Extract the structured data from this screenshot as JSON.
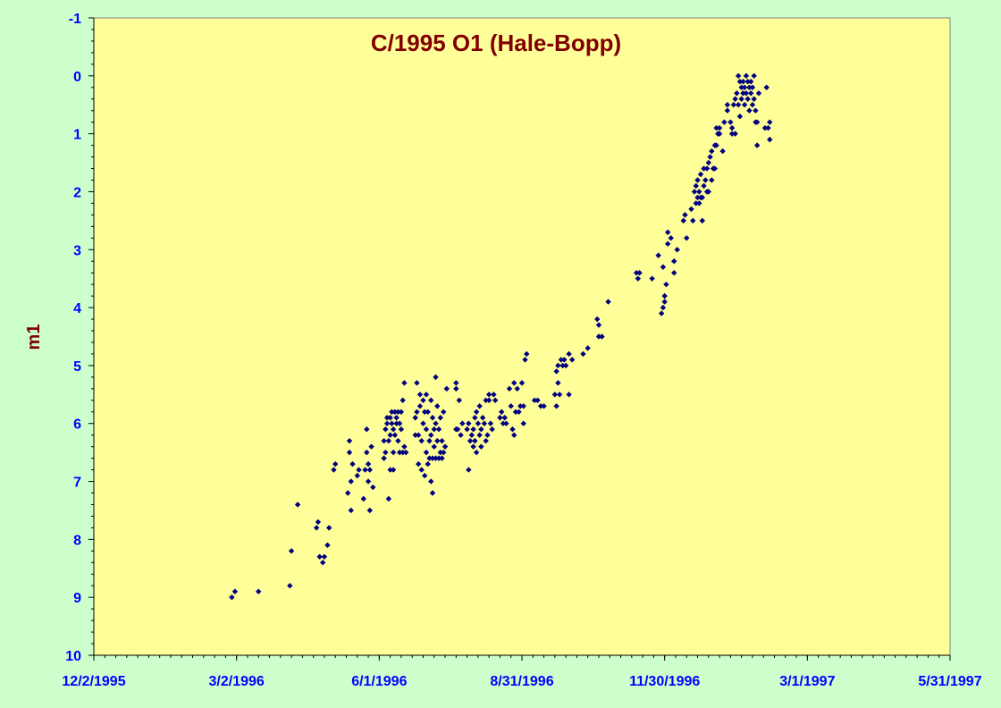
{
  "chart_data": {
    "type": "scatter",
    "title": "C/1995 O1 (Hale-Bopp)",
    "xlabel": "",
    "ylabel": "m1",
    "x_axis": {
      "kind": "date",
      "range": [
        "1995-12-02",
        "1997-05-31"
      ],
      "tick_labels": [
        "12/2/1995",
        "3/2/1996",
        "6/1/1996",
        "8/31/1996",
        "11/30/1996",
        "3/1/1997",
        "5/31/1997"
      ],
      "tick_dates": [
        "1995-12-02",
        "1996-03-02",
        "1996-06-01",
        "1996-08-31",
        "1996-11-30",
        "1997-03-01",
        "1997-05-31"
      ]
    },
    "y_axis": {
      "range": [
        -1,
        10
      ],
      "reversed": true,
      "tick_labels": [
        "-1",
        "0",
        "1",
        "2",
        "3",
        "4",
        "5",
        "6",
        "7",
        "8",
        "9",
        "10"
      ]
    },
    "grid": false,
    "legend": "none",
    "colors": {
      "background": "#ccffcc",
      "plot_area": "#ffff99",
      "marker": "#000080",
      "title": "#800000",
      "ticks": "#0000ff"
    },
    "series": [
      {
        "marker": "diamond",
        "points": [
          [
            "1996-02-28",
            9.0
          ],
          [
            "1996-03-01",
            8.9
          ],
          [
            "1996-03-16",
            8.9
          ],
          [
            "1996-04-05",
            8.8
          ],
          [
            "1996-04-06",
            8.2
          ],
          [
            "1996-04-10",
            7.4
          ],
          [
            "1996-04-22",
            7.8
          ],
          [
            "1996-04-23",
            7.7
          ],
          [
            "1996-04-24",
            8.3
          ],
          [
            "1996-04-26",
            8.4
          ],
          [
            "1996-04-27",
            8.3
          ],
          [
            "1996-04-29",
            8.1
          ],
          [
            "1996-04-30",
            7.8
          ],
          [
            "1996-05-03",
            6.8
          ],
          [
            "1996-05-04",
            6.7
          ],
          [
            "1996-05-12",
            7.2
          ],
          [
            "1996-05-13",
            6.3
          ],
          [
            "1996-05-13",
            6.5
          ],
          [
            "1996-05-14",
            7.0
          ],
          [
            "1996-05-14",
            7.5
          ],
          [
            "1996-05-15",
            6.7
          ],
          [
            "1996-05-18",
            6.9
          ],
          [
            "1996-05-19",
            6.8
          ],
          [
            "1996-05-22",
            7.3
          ],
          [
            "1996-05-23",
            6.8
          ],
          [
            "1996-05-24",
            6.1
          ],
          [
            "1996-05-24",
            6.5
          ],
          [
            "1996-05-25",
            6.7
          ],
          [
            "1996-05-25",
            7.0
          ],
          [
            "1996-05-26",
            7.5
          ],
          [
            "1996-05-26",
            6.8
          ],
          [
            "1996-05-27",
            6.4
          ],
          [
            "1996-05-28",
            7.1
          ],
          [
            "1996-06-04",
            6.6
          ],
          [
            "1996-06-04",
            6.3
          ],
          [
            "1996-06-05",
            6.5
          ],
          [
            "1996-06-05",
            6.1
          ],
          [
            "1996-06-06",
            5.9
          ],
          [
            "1996-06-06",
            6.0
          ],
          [
            "1996-06-07",
            6.3
          ],
          [
            "1996-06-07",
            7.3
          ],
          [
            "1996-06-08",
            5.9
          ],
          [
            "1996-06-08",
            6.2
          ],
          [
            "1996-06-08",
            6.8
          ],
          [
            "1996-06-09",
            6.0
          ],
          [
            "1996-06-09",
            5.8
          ],
          [
            "1996-06-10",
            6.1
          ],
          [
            "1996-06-10",
            6.5
          ],
          [
            "1996-06-10",
            6.8
          ],
          [
            "1996-06-11",
            5.8
          ],
          [
            "1996-06-11",
            6.2
          ],
          [
            "1996-06-12",
            6.0
          ],
          [
            "1996-06-12",
            5.9
          ],
          [
            "1996-06-13",
            5.8
          ],
          [
            "1996-06-13",
            6.3
          ],
          [
            "1996-06-14",
            6.5
          ],
          [
            "1996-06-14",
            6.0
          ],
          [
            "1996-06-15",
            5.8
          ],
          [
            "1996-06-15",
            6.1
          ],
          [
            "1996-06-16",
            6.5
          ],
          [
            "1996-06-16",
            5.6
          ],
          [
            "1996-06-17",
            5.3
          ],
          [
            "1996-06-17",
            6.4
          ],
          [
            "1996-06-18",
            6.5
          ],
          [
            "1996-06-24",
            6.2
          ],
          [
            "1996-06-24",
            5.9
          ],
          [
            "1996-06-25",
            5.3
          ],
          [
            "1996-06-25",
            5.8
          ],
          [
            "1996-06-26",
            6.7
          ],
          [
            "1996-06-26",
            6.2
          ],
          [
            "1996-06-27",
            5.7
          ],
          [
            "1996-06-27",
            5.5
          ],
          [
            "1996-06-28",
            6.8
          ],
          [
            "1996-06-28",
            6.3
          ],
          [
            "1996-06-29",
            6.0
          ],
          [
            "1996-06-29",
            5.6
          ],
          [
            "1996-06-30",
            6.9
          ],
          [
            "1996-06-30",
            5.8
          ],
          [
            "1996-07-01",
            6.5
          ],
          [
            "1996-07-01",
            6.1
          ],
          [
            "1996-07-01",
            5.5
          ],
          [
            "1996-07-02",
            6.7
          ],
          [
            "1996-07-02",
            5.8
          ],
          [
            "1996-07-03",
            6.3
          ],
          [
            "1996-07-03",
            6.6
          ],
          [
            "1996-07-04",
            7.0
          ],
          [
            "1996-07-04",
            5.6
          ],
          [
            "1996-07-04",
            6.2
          ],
          [
            "1996-07-05",
            7.2
          ],
          [
            "1996-07-05",
            6.6
          ],
          [
            "1996-07-05",
            5.9
          ],
          [
            "1996-07-06",
            6.4
          ],
          [
            "1996-07-06",
            6.1
          ],
          [
            "1996-07-07",
            5.2
          ],
          [
            "1996-07-07",
            6.6
          ],
          [
            "1996-07-07",
            6.0
          ],
          [
            "1996-07-08",
            6.3
          ],
          [
            "1996-07-08",
            5.7
          ],
          [
            "1996-07-09",
            6.6
          ],
          [
            "1996-07-09",
            6.1
          ],
          [
            "1996-07-10",
            5.9
          ],
          [
            "1996-07-10",
            6.5
          ],
          [
            "1996-07-11",
            6.3
          ],
          [
            "1996-07-11",
            6.6
          ],
          [
            "1996-07-12",
            6.5
          ],
          [
            "1996-07-12",
            5.8
          ],
          [
            "1996-07-13",
            6.4
          ],
          [
            "1996-07-14",
            5.4
          ],
          [
            "1996-07-20",
            5.3
          ],
          [
            "1996-07-20",
            5.4
          ],
          [
            "1996-07-20",
            6.1
          ],
          [
            "1996-07-21",
            6.1
          ],
          [
            "1996-07-22",
            5.6
          ],
          [
            "1996-07-23",
            6.2
          ],
          [
            "1996-07-24",
            6.0
          ],
          [
            "1996-07-27",
            6.1
          ],
          [
            "1996-07-28",
            6.8
          ],
          [
            "1996-07-28",
            6.0
          ],
          [
            "1996-07-29",
            6.3
          ],
          [
            "1996-07-30",
            6.2
          ],
          [
            "1996-07-31",
            6.1
          ],
          [
            "1996-07-31",
            6.4
          ],
          [
            "1996-08-01",
            5.9
          ],
          [
            "1996-08-01",
            6.3
          ],
          [
            "1996-08-02",
            5.8
          ],
          [
            "1996-08-02",
            6.5
          ],
          [
            "1996-08-03",
            6.0
          ],
          [
            "1996-08-04",
            6.2
          ],
          [
            "1996-08-04",
            5.7
          ],
          [
            "1996-08-05",
            6.4
          ],
          [
            "1996-08-05",
            6.1
          ],
          [
            "1996-08-06",
            5.9
          ],
          [
            "1996-08-07",
            6.0
          ],
          [
            "1996-08-08",
            6.3
          ],
          [
            "1996-08-08",
            5.6
          ],
          [
            "1996-08-09",
            6.2
          ],
          [
            "1996-08-10",
            5.5
          ],
          [
            "1996-08-10",
            5.6
          ],
          [
            "1996-08-11",
            6.0
          ],
          [
            "1996-08-12",
            6.1
          ],
          [
            "1996-08-13",
            5.5
          ],
          [
            "1996-08-14",
            5.6
          ],
          [
            "1996-08-17",
            5.9
          ],
          [
            "1996-08-18",
            5.8
          ],
          [
            "1996-08-19",
            6.0
          ],
          [
            "1996-08-20",
            5.9
          ],
          [
            "1996-08-21",
            6.0
          ],
          [
            "1996-08-23",
            5.4
          ],
          [
            "1996-08-24",
            5.7
          ],
          [
            "1996-08-25",
            6.1
          ],
          [
            "1996-08-26",
            6.2
          ],
          [
            "1996-08-26",
            5.3
          ],
          [
            "1996-08-27",
            5.8
          ],
          [
            "1996-08-28",
            5.4
          ],
          [
            "1996-08-29",
            5.8
          ],
          [
            "1996-08-30",
            5.7
          ],
          [
            "1996-08-31",
            5.3
          ],
          [
            "1996-09-01",
            6.0
          ],
          [
            "1996-09-01",
            5.7
          ],
          [
            "1996-09-02",
            4.9
          ],
          [
            "1996-09-03",
            4.8
          ],
          [
            "1996-09-08",
            5.6
          ],
          [
            "1996-09-10",
            5.6
          ],
          [
            "1996-09-12",
            5.7
          ],
          [
            "1996-09-14",
            5.7
          ],
          [
            "1996-09-21",
            5.5
          ],
          [
            "1996-09-22",
            5.7
          ],
          [
            "1996-09-22",
            5.1
          ],
          [
            "1996-09-23",
            5.3
          ],
          [
            "1996-09-23",
            5.0
          ],
          [
            "1996-09-24",
            5.5
          ],
          [
            "1996-09-25",
            4.9
          ],
          [
            "1996-09-26",
            5.0
          ],
          [
            "1996-09-27",
            4.9
          ],
          [
            "1996-09-28",
            5.0
          ],
          [
            "1996-09-30",
            4.8
          ],
          [
            "1996-09-30",
            5.5
          ],
          [
            "1996-10-02",
            4.9
          ],
          [
            "1996-10-09",
            4.8
          ],
          [
            "1996-10-12",
            4.7
          ],
          [
            "1996-10-18",
            4.2
          ],
          [
            "1996-10-19",
            4.5
          ],
          [
            "1996-10-19",
            4.3
          ],
          [
            "1996-10-21",
            4.5
          ],
          [
            "1996-10-25",
            3.9
          ],
          [
            "1996-11-12",
            3.4
          ],
          [
            "1996-11-13",
            3.5
          ],
          [
            "1996-11-14",
            3.4
          ],
          [
            "1996-11-22",
            3.5
          ],
          [
            "1996-11-26",
            3.1
          ],
          [
            "1996-11-28",
            4.1
          ],
          [
            "1996-11-29",
            3.3
          ],
          [
            "1996-11-29",
            4.0
          ],
          [
            "1996-11-30",
            3.8
          ],
          [
            "1996-11-30",
            3.9
          ],
          [
            "1996-12-01",
            3.6
          ],
          [
            "1996-12-02",
            2.7
          ],
          [
            "1996-12-02",
            2.9
          ],
          [
            "1996-12-04",
            2.8
          ],
          [
            "1996-12-06",
            3.4
          ],
          [
            "1996-12-06",
            3.2
          ],
          [
            "1996-12-08",
            3.0
          ],
          [
            "1996-12-12",
            2.5
          ],
          [
            "1996-12-13",
            2.4
          ],
          [
            "1996-12-14",
            2.8
          ],
          [
            "1996-12-17",
            2.3
          ],
          [
            "1996-12-18",
            2.5
          ],
          [
            "1996-12-19",
            2.0
          ],
          [
            "1996-12-20",
            2.2
          ],
          [
            "1996-12-20",
            1.9
          ],
          [
            "1996-12-21",
            2.1
          ],
          [
            "1996-12-21",
            1.8
          ],
          [
            "1996-12-22",
            2.2
          ],
          [
            "1996-12-22",
            2.0
          ],
          [
            "1996-12-23",
            1.7
          ],
          [
            "1996-12-23",
            2.1
          ],
          [
            "1996-12-24",
            2.5
          ],
          [
            "1996-12-24",
            2.1
          ],
          [
            "1996-12-25",
            1.6
          ],
          [
            "1996-12-25",
            1.9
          ],
          [
            "1996-12-26",
            1.8
          ],
          [
            "1996-12-27",
            2.0
          ],
          [
            "1996-12-27",
            1.6
          ],
          [
            "1996-12-28",
            1.5
          ],
          [
            "1996-12-28",
            2.0
          ],
          [
            "1996-12-29",
            1.4
          ],
          [
            "1996-12-30",
            1.8
          ],
          [
            "1996-12-30",
            1.3
          ],
          [
            "1996-12-31",
            1.6
          ],
          [
            "1997-01-01",
            1.2
          ],
          [
            "1997-01-01",
            1.6
          ],
          [
            "1997-01-02",
            0.9
          ],
          [
            "1997-01-02",
            1.2
          ],
          [
            "1997-01-03",
            1.0
          ],
          [
            "1997-01-04",
            0.9
          ],
          [
            "1997-01-04",
            1.0
          ],
          [
            "1997-01-06",
            1.3
          ],
          [
            "1997-01-07",
            0.8
          ],
          [
            "1997-01-09",
            0.6
          ],
          [
            "1997-01-09",
            0.5
          ],
          [
            "1997-01-11",
            0.8
          ],
          [
            "1997-01-12",
            1.0
          ],
          [
            "1997-01-12",
            0.9
          ],
          [
            "1997-01-13",
            0.5
          ],
          [
            "1997-01-14",
            0.4
          ],
          [
            "1997-01-14",
            1.0
          ],
          [
            "1997-01-15",
            0.3
          ],
          [
            "1997-01-16",
            0.0
          ],
          [
            "1997-01-16",
            0.5
          ],
          [
            "1997-01-17",
            0.1
          ],
          [
            "1997-01-17",
            0.7
          ],
          [
            "1997-01-18",
            0.2
          ],
          [
            "1997-01-18",
            0.4
          ],
          [
            "1997-01-19",
            0.1
          ],
          [
            "1997-01-19",
            0.3
          ],
          [
            "1997-01-20",
            0.5
          ],
          [
            "1997-01-20",
            0.2
          ],
          [
            "1997-01-21",
            0.0
          ],
          [
            "1997-01-21",
            0.3
          ],
          [
            "1997-01-22",
            0.1
          ],
          [
            "1997-01-22",
            0.4
          ],
          [
            "1997-01-23",
            0.2
          ],
          [
            "1997-01-23",
            0.6
          ],
          [
            "1997-01-24",
            0.1
          ],
          [
            "1997-01-24",
            0.3
          ],
          [
            "1997-01-25",
            0.5
          ],
          [
            "1997-01-25",
            0.2
          ],
          [
            "1997-01-26",
            0.0
          ],
          [
            "1997-01-26",
            0.4
          ],
          [
            "1997-01-27",
            0.6
          ],
          [
            "1997-01-27",
            0.8
          ],
          [
            "1997-01-28",
            1.2
          ],
          [
            "1997-01-28",
            0.8
          ],
          [
            "1997-01-29",
            0.3
          ],
          [
            "1997-02-02",
            0.9
          ],
          [
            "1997-02-03",
            0.2
          ],
          [
            "1997-02-04",
            0.9
          ],
          [
            "1997-02-05",
            0.8
          ],
          [
            "1997-02-05",
            1.1
          ]
        ]
      }
    ]
  }
}
